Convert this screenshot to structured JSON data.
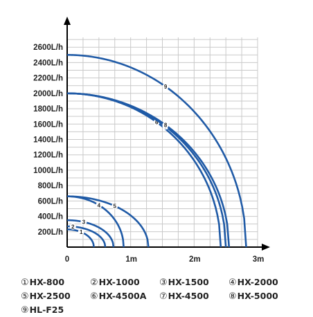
{
  "chart_data": {
    "type": "line",
    "title": "",
    "xlabel": "",
    "ylabel": "",
    "xlim": [
      0,
      3
    ],
    "ylim": [
      0,
      2800
    ],
    "x_ticks": [
      {
        "value": 0,
        "label": "0"
      },
      {
        "value": 1,
        "label": "1m"
      },
      {
        "value": 2,
        "label": "2m"
      },
      {
        "value": 3,
        "label": "3m"
      }
    ],
    "y_ticks": [
      {
        "value": 200,
        "label": "200L/h"
      },
      {
        "value": 400,
        "label": "400L/h"
      },
      {
        "value": 600,
        "label": "600L/h"
      },
      {
        "value": 800,
        "label": "800L/h"
      },
      {
        "value": 1000,
        "label": "1000L/h"
      },
      {
        "value": 1200,
        "label": "1200L/h"
      },
      {
        "value": 1400,
        "label": "1400L/h"
      },
      {
        "value": 1600,
        "label": "1600L/h"
      },
      {
        "value": 1800,
        "label": "1800L/h"
      },
      {
        "value": 2000,
        "label": "2000L/h"
      },
      {
        "value": 2200,
        "label": "2200L/h"
      },
      {
        "value": 2400,
        "label": "2400L/h"
      },
      {
        "value": 2600,
        "label": "2600L/h"
      }
    ],
    "grid": true,
    "line_color": "#1f5aa6",
    "series": [
      {
        "marker": "1",
        "name": "HX-800",
        "y0": 230,
        "xmax": 0.42,
        "marker_x": 0.22
      },
      {
        "marker": "2",
        "name": "HX-1000",
        "y0": 270,
        "xmax": 0.6,
        "marker_x": 0.09
      },
      {
        "marker": "3",
        "name": "HX-1500",
        "y0": 350,
        "xmax": 0.73,
        "marker_x": 0.26
      },
      {
        "marker": "4",
        "name": "HX-2000",
        "y0": 660,
        "xmax": 0.89,
        "marker_x": 0.5
      },
      {
        "marker": "5",
        "name": "HX-2500",
        "y0": 660,
        "xmax": 1.28,
        "marker_x": 0.75
      },
      {
        "marker": "6",
        "name": "HX-4500A",
        "y0": 2000,
        "xmax": 2.42,
        "marker_x": 1.41
      },
      {
        "marker": "7",
        "name": "HX-4500",
        "y0": 2000,
        "xmax": 2.5,
        "marker_x": 1.55
      },
      {
        "marker": "8",
        "name": "HX-5000",
        "y0": 2000,
        "xmax": 2.55,
        "marker_x": 1.55
      },
      {
        "marker": "9",
        "name": "HL-F25",
        "y0": 2500,
        "xmax": 2.82,
        "marker_x": 1.55
      }
    ]
  },
  "legend": {
    "rows": [
      [
        {
          "num": "①",
          "label": "HX-800"
        },
        {
          "num": "②",
          "label": "HX-1000"
        },
        {
          "num": "③",
          "label": "HX-1500"
        },
        {
          "num": "④",
          "label": "HX-2000"
        }
      ],
      [
        {
          "num": "⑤",
          "label": "HX-2500"
        },
        {
          "num": "⑥",
          "label": "HX-4500A"
        },
        {
          "num": "⑦",
          "label": "HX-4500"
        },
        {
          "num": "⑧",
          "label": "HX-5000"
        }
      ],
      [
        {
          "num": "⑨",
          "label": "HL-F25"
        }
      ]
    ]
  }
}
